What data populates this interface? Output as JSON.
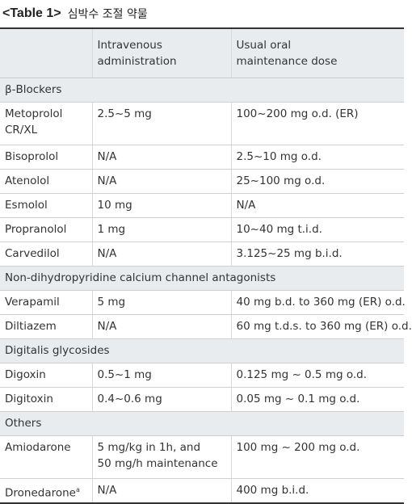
{
  "caption": {
    "label": "<Table 1>",
    "title": "심박수 조절 약물"
  },
  "header": {
    "col1": "",
    "col2_line1": "Intravenous",
    "col2_line2": "administration",
    "col3_line1": "Usual oral",
    "col3_line2": "maintenance dose"
  },
  "sections": [
    {
      "name": "β-Blockers",
      "rows": [
        {
          "drug_line1": "Metoprolol",
          "drug_line2": "CR/XL",
          "iv_line1": "2.5~5 mg",
          "iv_line2": "",
          "oral": "100~200 mg o.d. (ER)"
        },
        {
          "drug_line1": "Bisoprolol",
          "drug_line2": "",
          "iv_line1": "N/A",
          "iv_line2": "",
          "oral": "2.5~10 mg o.d."
        },
        {
          "drug_line1": "Atenolol",
          "drug_line2": "",
          "iv_line1": "N/A",
          "iv_line2": "",
          "oral": "25~100 mg o.d."
        },
        {
          "drug_line1": "Esmolol",
          "drug_line2": "",
          "iv_line1": "10 mg",
          "iv_line2": "",
          "oral": "N/A"
        },
        {
          "drug_line1": "Propranolol",
          "drug_line2": "",
          "iv_line1": "1 mg",
          "iv_line2": "",
          "oral": "10~40 mg t.i.d."
        },
        {
          "drug_line1": "Carvedilol",
          "drug_line2": "",
          "iv_line1": "N/A",
          "iv_line2": "",
          "oral": "3.125~25 mg b.i.d."
        }
      ]
    },
    {
      "name": "Non-dihydropyridine calcium channel antagonists",
      "rows": [
        {
          "drug_line1": "Verapamil",
          "drug_line2": "",
          "iv_line1": "5 mg",
          "iv_line2": "",
          "oral": "40 mg b.d. to 360 mg (ER) o.d."
        },
        {
          "drug_line1": "Diltiazem",
          "drug_line2": "",
          "iv_line1": "N/A",
          "iv_line2": "",
          "oral": "60 mg t.d.s. to 360 mg (ER) o.d."
        }
      ]
    },
    {
      "name": "Digitalis glycosides",
      "rows": [
        {
          "drug_line1": "Digoxin",
          "drug_line2": "",
          "iv_line1": "0.5~1 mg",
          "iv_line2": "",
          "oral": "0.125 mg ~ 0.5 mg o.d."
        },
        {
          "drug_line1": "Digitoxin",
          "drug_line2": "",
          "iv_line1": "0.4~0.6 mg",
          "iv_line2": "",
          "oral": "0.05 mg ~ 0.1 mg o.d."
        }
      ]
    },
    {
      "name": "Others",
      "rows": [
        {
          "drug_line1": "Amiodarone",
          "drug_line2": "",
          "iv_line1": "5 mg/kg in 1h, and",
          "iv_line2": "50 mg/h maintenance",
          "oral": "100 mg ~ 200 mg o.d."
        },
        {
          "drug_line1": "Dronedarone",
          "drug_sup": "a",
          "drug_line2": "",
          "iv_line1": "N/A",
          "iv_line2": "",
          "oral": "400 mg b.i.d."
        }
      ]
    }
  ]
}
